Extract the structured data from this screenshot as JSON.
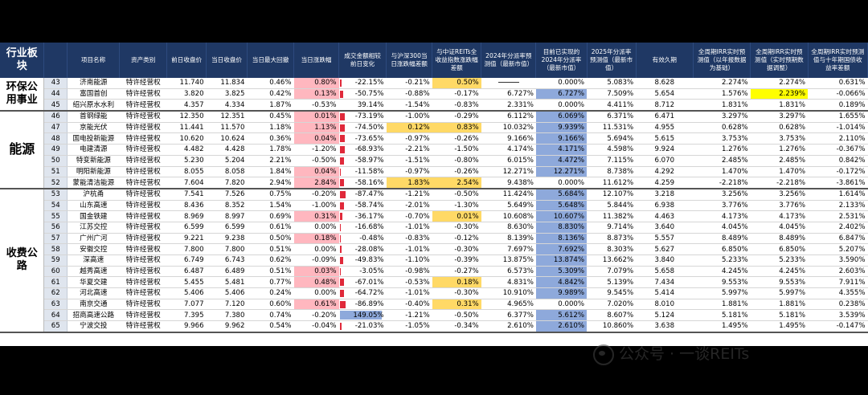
{
  "headers": {
    "sector": "行业板块",
    "no": "",
    "name": "项目名称",
    "asset_class": "资产类别",
    "prev_close": "前日收盘价",
    "close": "当日收盘价",
    "max_drawdown": "当日最大回撤",
    "change": "当日涨跌幅",
    "turnover_change": "成交金额相较前日变化",
    "vs_hs300": "与沪深300当日涨跌幅差额",
    "vs_reits": "与中证REITs全收益指数涨跌幅差额",
    "div_2024_forecast": "2024年分派率预测值（最新市值）",
    "div_2024_realized": "目前已实现的2024年分派率（最新市值）",
    "div_2025_forecast": "2025年分派率预测值（最新市值）",
    "duration": "有效久期",
    "irr_report": "全周期IRR实时预测值（以年报数据为基础）",
    "irr_adjusted": "全周期IRR实时预测值（实时预期数据调整）",
    "irr_spread": "全周期IRR实时预测值与十年期国债收益率差额"
  },
  "sectors": [
    {
      "label": "环保公用事业",
      "rows": 3
    },
    {
      "label": "能源",
      "rows": 7
    },
    {
      "label": "收费公路",
      "rows": 13
    }
  ],
  "rows": [
    {
      "no": "43",
      "name": "济南能源",
      "asset": "特许经营权",
      "prev": "11.740",
      "close": "11.834",
      "dd": "0.46%",
      "chg": "0.80%",
      "chg_hl": "pink",
      "turn": "-22.15%",
      "turn_bar": 0.35,
      "hs": "-0.21%",
      "hs_hl": "",
      "reit": "0.50%",
      "reit_hl": "yellow",
      "d24": "dash",
      "d24r": "0.000%",
      "d24r_fill": 0,
      "d25": "5.083%",
      "dur": "8.628",
      "irr1": "2.274%",
      "irr2": "2.274%",
      "irr2_hl": "",
      "sp": "0.631%"
    },
    {
      "no": "44",
      "name": "富国首创",
      "asset": "特许经营权",
      "prev": "3.820",
      "close": "3.825",
      "dd": "0.42%",
      "chg": "0.13%",
      "chg_hl": "pink",
      "turn": "-50.75%",
      "turn_bar": 0.55,
      "hs": "-0.88%",
      "hs_hl": "",
      "reit": "-0.17%",
      "reit_hl": "",
      "d24": "6.727%",
      "d24r": "6.727%",
      "d24r_fill": 1,
      "d25": "7.509%",
      "dur": "5.654",
      "irr1": "1.576%",
      "irr2": "2.239%",
      "irr2_hl": "brightyel",
      "sp": "-0.066%"
    },
    {
      "no": "45",
      "name": "绍兴原水水利",
      "asset": "特许经营权",
      "prev": "4.357",
      "close": "4.334",
      "dd": "1.87%",
      "chg": "-0.53%",
      "chg_hl": "",
      "turn": "39.14%",
      "turn_bar": 0,
      "hs": "-1.54%",
      "hs_hl": "",
      "reit": "-0.83%",
      "reit_hl": "",
      "d24": "2.331%",
      "d24r": "0.000%",
      "d24r_fill": 0,
      "d25": "4.411%",
      "dur": "8.712",
      "irr1": "1.831%",
      "irr2": "1.831%",
      "irr2_hl": "",
      "sp": "0.189%"
    },
    {
      "no": "46",
      "name": "首钢绿能",
      "asset": "特许经营权",
      "prev": "12.350",
      "close": "12.351",
      "dd": "0.45%",
      "chg": "0.01%",
      "chg_hl": "pink",
      "turn": "-73.19%",
      "turn_bar": 0.8,
      "hs": "-1.00%",
      "hs_hl": "",
      "reit": "-0.29%",
      "reit_hl": "",
      "d24": "6.112%",
      "d24r": "6.069%",
      "d24r_fill": 1,
      "d25": "6.371%",
      "dur": "6.471",
      "irr1": "3.297%",
      "irr2": "3.297%",
      "irr2_hl": "",
      "sp": "1.655%"
    },
    {
      "no": "47",
      "name": "京能光伏",
      "asset": "特许经营权",
      "prev": "11.441",
      "close": "11.570",
      "dd": "1.18%",
      "chg": "1.13%",
      "chg_hl": "pink",
      "turn": "-74.50%",
      "turn_bar": 0.82,
      "hs": "0.12%",
      "hs_hl": "yellow",
      "reit": "0.83%",
      "reit_hl": "yellow",
      "d24": "10.032%",
      "d24r": "9.939%",
      "d24r_fill": 1,
      "d25": "11.531%",
      "dur": "4.955",
      "irr1": "0.628%",
      "irr2": "0.628%",
      "irr2_hl": "",
      "sp": "-1.014%"
    },
    {
      "no": "48",
      "name": "国电投新能源",
      "asset": "特许经营权",
      "prev": "10.620",
      "close": "10.624",
      "dd": "0.36%",
      "chg": "0.04%",
      "chg_hl": "pink",
      "turn": "-73.65%",
      "turn_bar": 0.81,
      "hs": "-0.97%",
      "hs_hl": "",
      "reit": "-0.26%",
      "reit_hl": "",
      "d24": "9.166%",
      "d24r": "9.166%",
      "d24r_fill": 1,
      "d25": "5.694%",
      "dur": "5.615",
      "irr1": "3.753%",
      "irr2": "3.753%",
      "irr2_hl": "",
      "sp": "2.110%"
    },
    {
      "no": "49",
      "name": "电建清源",
      "asset": "特许经营权",
      "prev": "4.482",
      "close": "4.428",
      "dd": "1.78%",
      "chg": "-1.20%",
      "chg_hl": "",
      "turn": "-68.93%",
      "turn_bar": 0.76,
      "hs": "-2.21%",
      "hs_hl": "",
      "reit": "-1.50%",
      "reit_hl": "",
      "d24": "4.174%",
      "d24r": "4.171%",
      "d24r_fill": 1,
      "d25": "4.598%",
      "dur": "9.924",
      "irr1": "1.276%",
      "irr2": "1.276%",
      "irr2_hl": "",
      "sp": "-0.367%"
    },
    {
      "no": "50",
      "name": "特变新能源",
      "asset": "特许经营权",
      "prev": "5.230",
      "close": "5.204",
      "dd": "2.21%",
      "chg": "-0.50%",
      "chg_hl": "",
      "turn": "-58.97%",
      "turn_bar": 0.65,
      "hs": "-1.51%",
      "hs_hl": "",
      "reit": "-0.80%",
      "reit_hl": "",
      "d24": "6.015%",
      "d24r": "4.472%",
      "d24r_fill": 1,
      "d25": "7.115%",
      "dur": "6.070",
      "irr1": "2.485%",
      "irr2": "2.485%",
      "irr2_hl": "",
      "sp": "0.842%"
    },
    {
      "no": "51",
      "name": "明阳新能源",
      "asset": "特许经营权",
      "prev": "8.055",
      "close": "8.058",
      "dd": "1.84%",
      "chg": "0.04%",
      "chg_hl": "pink",
      "turn": "-11.58%",
      "turn_bar": 0.18,
      "hs": "-0.97%",
      "hs_hl": "",
      "reit": "-0.26%",
      "reit_hl": "",
      "d24": "12.271%",
      "d24r": "12.271%",
      "d24r_fill": 1,
      "d25": "8.738%",
      "dur": "4.292",
      "irr1": "1.470%",
      "irr2": "1.470%",
      "irr2_hl": "",
      "sp": "-0.172%"
    },
    {
      "no": "52",
      "name": "蒙能清洁能源",
      "asset": "特许经营权",
      "prev": "7.604",
      "close": "7.820",
      "dd": "2.94%",
      "chg": "2.84%",
      "chg_hl": "pink",
      "turn": "-58.16%",
      "turn_bar": 0.64,
      "hs": "1.83%",
      "hs_hl": "yellow",
      "reit": "2.54%",
      "reit_hl": "yellow",
      "d24": "9.438%",
      "d24r": "0.000%",
      "d24r_fill": 0,
      "d25": "11.612%",
      "dur": "4.259",
      "irr1": "-2.218%",
      "irr2": "-2.218%",
      "irr2_hl": "",
      "sp": "-3.861%"
    },
    {
      "no": "53",
      "name": "沪杭甬",
      "asset": "特许经营权",
      "prev": "7.541",
      "close": "7.526",
      "dd": "0.75%",
      "chg": "-0.20%",
      "chg_hl": "",
      "turn": "-87.47%",
      "turn_bar": 0.96,
      "hs": "-1.21%",
      "hs_hl": "",
      "reit": "-0.50%",
      "reit_hl": "",
      "d24": "11.424%",
      "d24r": "5.684%",
      "d24r_fill": 1,
      "d25": "12.107%",
      "dur": "3.218",
      "irr1": "3.256%",
      "irr2": "3.256%",
      "irr2_hl": "",
      "sp": "1.614%"
    },
    {
      "no": "54",
      "name": "山东高速",
      "asset": "特许经营权",
      "prev": "8.436",
      "close": "8.352",
      "dd": "1.54%",
      "chg": "-1.00%",
      "chg_hl": "",
      "turn": "-58.74%",
      "turn_bar": 0.65,
      "hs": "-2.01%",
      "hs_hl": "",
      "reit": "-1.30%",
      "reit_hl": "",
      "d24": "5.649%",
      "d24r": "5.648%",
      "d24r_fill": 1,
      "d25": "5.844%",
      "dur": "6.938",
      "irr1": "3.776%",
      "irr2": "3.776%",
      "irr2_hl": "",
      "sp": "2.133%"
    },
    {
      "no": "55",
      "name": "国金铁建",
      "asset": "特许经营权",
      "prev": "8.969",
      "close": "8.997",
      "dd": "0.69%",
      "chg": "0.31%",
      "chg_hl": "pink",
      "turn": "-36.17%",
      "turn_bar": 0.42,
      "hs": "-0.70%",
      "hs_hl": "",
      "reit": "0.01%",
      "reit_hl": "yellow",
      "d24": "10.608%",
      "d24r": "10.607%",
      "d24r_fill": 1,
      "d25": "11.382%",
      "dur": "4.463",
      "irr1": "4.173%",
      "irr2": "4.173%",
      "irr2_hl": "",
      "sp": "2.531%"
    },
    {
      "no": "56",
      "name": "江苏交控",
      "asset": "特许经营权",
      "prev": "6.599",
      "close": "6.599",
      "dd": "0.61%",
      "chg": "0.00%",
      "chg_hl": "",
      "turn": "-16.68%",
      "turn_bar": 0.22,
      "hs": "-1.01%",
      "hs_hl": "",
      "reit": "-0.30%",
      "reit_hl": "",
      "d24": "8.630%",
      "d24r": "8.830%",
      "d24r_fill": 1,
      "d25": "9.714%",
      "dur": "3.640",
      "irr1": "4.045%",
      "irr2": "4.045%",
      "irr2_hl": "",
      "sp": "2.402%"
    },
    {
      "no": "57",
      "name": "广州广河",
      "asset": "特许经营权",
      "prev": "9.221",
      "close": "9.238",
      "dd": "0.50%",
      "chg": "0.18%",
      "chg_hl": "pink",
      "turn": "-0.48%",
      "turn_bar": 0.02,
      "hs": "-0.83%",
      "hs_hl": "",
      "reit": "-0.12%",
      "reit_hl": "",
      "d24": "8.139%",
      "d24r": "8.136%",
      "d24r_fill": 1,
      "d25": "8.873%",
      "dur": "5.557",
      "irr1": "8.489%",
      "irr2": "8.489%",
      "irr2_hl": "",
      "sp": "6.847%"
    },
    {
      "no": "58",
      "name": "安徽交控",
      "asset": "特许经营权",
      "prev": "7.800",
      "close": "7.800",
      "dd": "0.51%",
      "chg": "0.00%",
      "chg_hl": "",
      "turn": "-28.08%",
      "turn_bar": 0.34,
      "hs": "-1.01%",
      "hs_hl": "",
      "reit": "-0.30%",
      "reit_hl": "",
      "d24": "7.697%",
      "d24r": "7.692%",
      "d24r_fill": 1,
      "d25": "8.303%",
      "dur": "5.627",
      "irr1": "6.850%",
      "irr2": "6.850%",
      "irr2_hl": "",
      "sp": "5.207%"
    },
    {
      "no": "59",
      "name": "深高速",
      "asset": "特许经营权",
      "prev": "6.749",
      "close": "6.743",
      "dd": "0.62%",
      "chg": "-0.09%",
      "chg_hl": "",
      "turn": "-49.83%",
      "turn_bar": 0.55,
      "hs": "-1.10%",
      "hs_hl": "",
      "reit": "-0.39%",
      "reit_hl": "",
      "d24": "13.875%",
      "d24r": "13.874%",
      "d24r_fill": 1,
      "d25": "13.662%",
      "dur": "3.840",
      "irr1": "5.233%",
      "irr2": "5.233%",
      "irr2_hl": "",
      "sp": "3.590%"
    },
    {
      "no": "60",
      "name": "越秀高速",
      "asset": "特许经营权",
      "prev": "6.487",
      "close": "6.489",
      "dd": "0.51%",
      "chg": "0.03%",
      "chg_hl": "pink",
      "turn": "-3.05%",
      "turn_bar": 0.05,
      "hs": "-0.98%",
      "hs_hl": "",
      "reit": "-0.27%",
      "reit_hl": "",
      "d24": "6.573%",
      "d24r": "5.309%",
      "d24r_fill": 1,
      "d25": "7.079%",
      "dur": "5.658",
      "irr1": "4.245%",
      "irr2": "4.245%",
      "irr2_hl": "",
      "sp": "2.603%"
    },
    {
      "no": "61",
      "name": "华夏交建",
      "asset": "特许经营权",
      "prev": "5.455",
      "close": "5.481",
      "dd": "0.77%",
      "chg": "0.48%",
      "chg_hl": "pink",
      "turn": "-67.01%",
      "turn_bar": 0.74,
      "hs": "-0.53%",
      "hs_hl": "",
      "reit": "0.18%",
      "reit_hl": "yellow",
      "d24": "4.831%",
      "d24r": "4.842%",
      "d24r_fill": 1,
      "d25": "5.139%",
      "dur": "7.434",
      "irr1": "9.553%",
      "irr2": "9.553%",
      "irr2_hl": "",
      "sp": "7.911%"
    },
    {
      "no": "62",
      "name": "河北高速",
      "asset": "特许经营权",
      "prev": "5.406",
      "close": "5.406",
      "dd": "0.24%",
      "chg": "0.00%",
      "chg_hl": "",
      "turn": "-64.72%",
      "turn_bar": 0.72,
      "hs": "-1.01%",
      "hs_hl": "",
      "reit": "-0.30%",
      "reit_hl": "",
      "d24": "10.910%",
      "d24r": "9.989%",
      "d24r_fill": 1,
      "d25": "9.545%",
      "dur": "5.414",
      "irr1": "5.997%",
      "irr2": "5.997%",
      "irr2_hl": "",
      "sp": "4.355%"
    },
    {
      "no": "63",
      "name": "南京交通",
      "asset": "特许经营权",
      "prev": "7.077",
      "close": "7.120",
      "dd": "0.60%",
      "chg": "0.61%",
      "chg_hl": "pink",
      "turn": "-86.89%",
      "turn_bar": 0.95,
      "hs": "-0.40%",
      "hs_hl": "",
      "reit": "0.31%",
      "reit_hl": "yellow",
      "d24": "4.965%",
      "d24r": "0.000%",
      "d24r_fill": 0,
      "d25": "7.020%",
      "dur": "8.010",
      "irr1": "1.881%",
      "irr2": "1.881%",
      "irr2_hl": "",
      "sp": "0.238%"
    },
    {
      "no": "64",
      "name": "招商高速公路",
      "asset": "特许经营权",
      "prev": "7.395",
      "close": "7.380",
      "dd": "0.74%",
      "chg": "-0.20%",
      "chg_hl": "",
      "turn": "149.05%",
      "turn_bar": -1,
      "hs": "-1.21%",
      "hs_hl": "",
      "reit": "-0.50%",
      "reit_hl": "",
      "d24": "6.377%",
      "d24r": "5.612%",
      "d24r_fill": 1,
      "d25": "8.607%",
      "dur": "5.124",
      "irr1": "5.181%",
      "irr2": "5.181%",
      "irr2_hl": "",
      "sp": "3.539%"
    },
    {
      "no": "65",
      "name": "宁波交投",
      "asset": "特许经营权",
      "prev": "9.966",
      "close": "9.962",
      "dd": "0.54%",
      "chg": "-0.04%",
      "chg_hl": "",
      "turn": "-21.03%",
      "turn_bar": 0.27,
      "hs": "-1.05%",
      "hs_hl": "",
      "reit": "-0.34%",
      "reit_hl": "",
      "d24": "2.610%",
      "d24r": "2.610%",
      "d24r_fill": 1,
      "d25": "10.860%",
      "dur": "3.638",
      "irr1": "1.495%",
      "irr2": "1.495%",
      "irr2_hl": "",
      "sp": "-0.147%"
    }
  ],
  "watermark": "公众号 · 一谈REITs",
  "colors": {
    "header": "#1f3864",
    "pink": "#ffb7bf",
    "yellow": "#ffd966",
    "blue": "#8ea9db",
    "red_bar": "#e0293a"
  }
}
